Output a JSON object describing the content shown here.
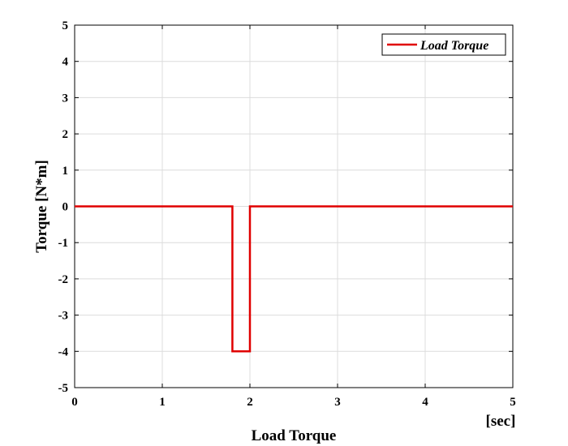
{
  "chart_data": {
    "type": "line",
    "xlabel": "Load Torque",
    "x_unit_label": "[sec]",
    "ylabel": "Torque [N*m]",
    "xlim": [
      0,
      5
    ],
    "ylim": [
      -5,
      5
    ],
    "x_ticks": [
      0,
      1,
      2,
      3,
      4,
      5
    ],
    "y_ticks": [
      -5,
      -4,
      -3,
      -2,
      -1,
      0,
      1,
      2,
      3,
      4,
      5
    ],
    "grid": true,
    "legend_position": "top-right",
    "series": [
      {
        "name": "Load Torque",
        "color": "#e00000",
        "x": [
          0,
          1.8,
          1.8,
          2.0,
          2.0,
          5
        ],
        "y": [
          0,
          0,
          -4,
          -4,
          0,
          0
        ]
      }
    ]
  }
}
